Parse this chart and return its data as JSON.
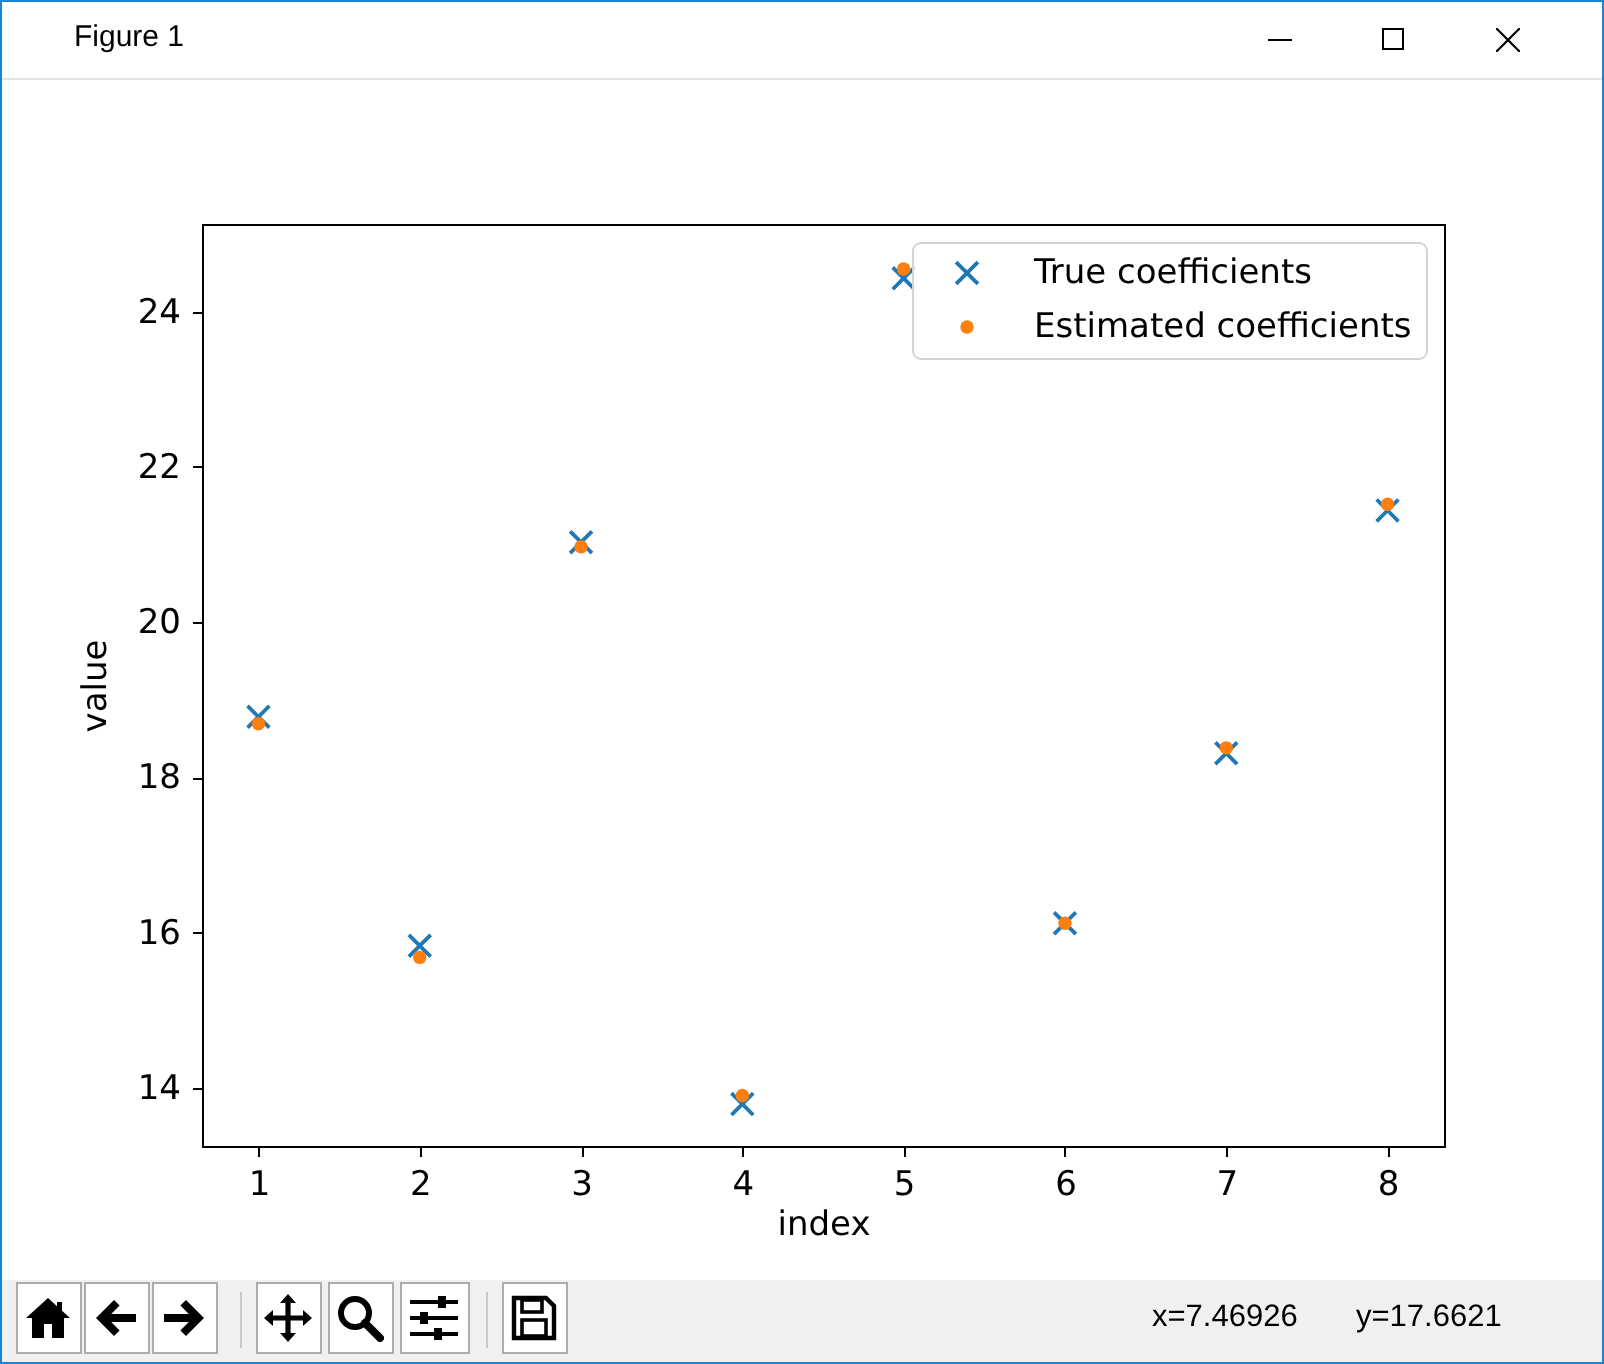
{
  "chart_data": {
    "type": "scatter",
    "xlabel": "index",
    "ylabel": "value",
    "annotations": [
      "Figure 1",
      "x=7.46926",
      "y=17.6621"
    ],
    "x": [
      1,
      2,
      3,
      4,
      5,
      6,
      7,
      8
    ],
    "series": [
      {
        "name": "True coefficients",
        "color": "#1f77b4",
        "marker": "cross",
        "values": [
          18.78,
          15.83,
          21.03,
          13.79,
          24.43,
          16.12,
          18.31,
          21.44
        ]
      },
      {
        "name": "Estimated coefficients",
        "color": "#ff7f0e",
        "marker": "circle",
        "values": [
          18.69,
          15.68,
          20.97,
          13.9,
          24.55,
          16.12,
          18.38,
          21.52
        ]
      }
    ],
    "xlim": [
      0.65,
      8.35
    ],
    "ylim": [
      13.25,
      25.13
    ],
    "xticks": [
      1,
      2,
      3,
      4,
      5,
      6,
      7,
      8
    ],
    "yticks": [
      14,
      16,
      18,
      20,
      22,
      24
    ],
    "legend": "top right"
  }
}
